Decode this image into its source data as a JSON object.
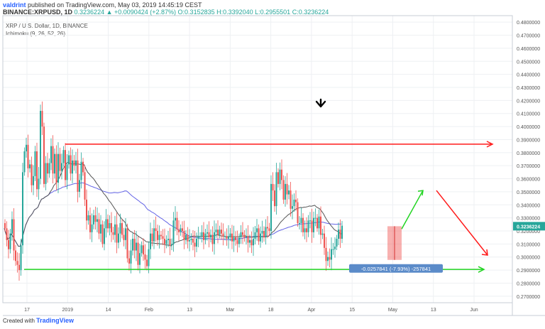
{
  "header": {
    "author": "valdrint",
    "published": "published on TradingView.com, May 03, 2019 14:45:19 CEST",
    "symbol": "BINANCE:XRPUSD, 1D",
    "ohlc": "0.3236224 ▲ +0.0090424 (+2.87%) O:0.3152835 H:0.3392040 L:0.2955501 C:0.3236224"
  },
  "legend": {
    "title": "XRP / U.S. Dollar, 1D, BINANCE",
    "indicator": "Ichimoku (9, 26, 52, 26)"
  },
  "footer": {
    "prefix": "Created with",
    "brand": "TradingView"
  },
  "colors": {
    "up": "#26a69a",
    "down": "#ef5350",
    "resistance": "#ff1a1a",
    "support": "#21d421",
    "ma_slow": "#6464e6",
    "ma_fast": "#555555"
  },
  "chart_data": {
    "type": "candlestick",
    "title": "XRP / U.S. Dollar, 1D, BINANCE",
    "ylim": [
      0.265,
      0.485
    ],
    "y_ticks": [
      "0.4800000",
      "0.4700000",
      "0.4600000",
      "0.4500000",
      "0.4400000",
      "0.4300000",
      "0.4200000",
      "0.4100000",
      "0.4000000",
      "0.3900000",
      "0.3800000",
      "0.3700000",
      "0.3600000",
      "0.3500000",
      "0.3400000",
      "0.3300000",
      "0.3200000",
      "0.3100000",
      "0.3000000",
      "0.2900000",
      "0.2800000",
      "0.2700000"
    ],
    "x_ticks": [
      "17",
      "2019",
      "14",
      "Feb",
      "13",
      "Mar",
      "18",
      "Apr",
      "15",
      "May",
      "13",
      "Jun"
    ],
    "last_price": "0.3236224",
    "measure_label": "-0.0257841 (-7.93%) -257841",
    "annotations": {
      "resistance": 0.3865,
      "support": 0.2905,
      "arrow_up": [
        0.3215,
        0.351
      ],
      "arrow_down": [
        0.351,
        0.3015
      ],
      "measure": [
        0.3236,
        0.2978
      ]
    },
    "closes": [
      0.322,
      0.313,
      0.306,
      0.318,
      0.329,
      0.305,
      0.297,
      0.294,
      0.29,
      0.309,
      0.365,
      0.381,
      0.386,
      0.368,
      0.371,
      0.355,
      0.362,
      0.381,
      0.352,
      0.36,
      0.412,
      0.4,
      0.356,
      0.372,
      0.364,
      0.372,
      0.385,
      0.364,
      0.379,
      0.357,
      0.379,
      0.366,
      0.372,
      0.382,
      0.359,
      0.371,
      0.378,
      0.364,
      0.374,
      0.37,
      0.374,
      0.35,
      0.359,
      0.373,
      0.365,
      0.344,
      0.328,
      0.332,
      0.319,
      0.325,
      0.332,
      0.327,
      0.329,
      0.318,
      0.325,
      0.31,
      0.322,
      0.329,
      0.322,
      0.326,
      0.319,
      0.317,
      0.325,
      0.311,
      0.318,
      0.326,
      0.317,
      0.313,
      0.322,
      0.299,
      0.295,
      0.305,
      0.314,
      0.305,
      0.311,
      0.294,
      0.303,
      0.309,
      0.302,
      0.298,
      0.293,
      0.306,
      0.318,
      0.312,
      0.322,
      0.32,
      0.313,
      0.317,
      0.316,
      0.314,
      0.31,
      0.313,
      0.314,
      0.309,
      0.31,
      0.328,
      0.33,
      0.321,
      0.319,
      0.322,
      0.32,
      0.313,
      0.317,
      0.312,
      0.313,
      0.314,
      0.311,
      0.308,
      0.314,
      0.316,
      0.316,
      0.319,
      0.313,
      0.318,
      0.319,
      0.315,
      0.317,
      0.31,
      0.319,
      0.321,
      0.317,
      0.321,
      0.318,
      0.316,
      0.316,
      0.314,
      0.316,
      0.318,
      0.312,
      0.315,
      0.313,
      0.31,
      0.315,
      0.319,
      0.317,
      0.315,
      0.316,
      0.311,
      0.313,
      0.309,
      0.314,
      0.319,
      0.322,
      0.312,
      0.318,
      0.32,
      0.315,
      0.323,
      0.322,
      0.32,
      0.356,
      0.351,
      0.339,
      0.365,
      0.356,
      0.367,
      0.359,
      0.344,
      0.356,
      0.348,
      0.351,
      0.337,
      0.339,
      0.344,
      0.342,
      0.326,
      0.326,
      0.33,
      0.319,
      0.322,
      0.319,
      0.328,
      0.328,
      0.319,
      0.33,
      0.33,
      0.322,
      0.331,
      0.317,
      0.318,
      0.307,
      0.297,
      0.3,
      0.298,
      0.306,
      0.306,
      0.308,
      0.314,
      0.321,
      0.314,
      0.324
    ]
  }
}
